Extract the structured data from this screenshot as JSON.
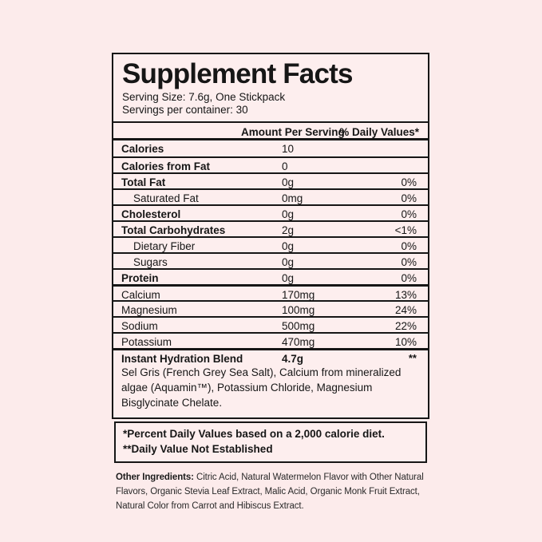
{
  "page": {
    "background_color": "#fcebeb",
    "panel_background_color": "#fdeeee",
    "border_color": "#161616"
  },
  "label": {
    "title": "Supplement Facts",
    "serving_size": "Serving Size: 7.6g, One Stickpack",
    "servings_per_container": "Servings per container: 30",
    "columns": {
      "amount": "Amount Per Serving",
      "dv": "% Daily Values*"
    },
    "rows": [
      {
        "label": "Calories",
        "amount": "10",
        "dv": "",
        "bold": true
      },
      {
        "label": "Calories from Fat",
        "amount": "0",
        "dv": "",
        "bold": true
      },
      {
        "label": "Total Fat",
        "amount": "0g",
        "dv": "0%",
        "bold": true
      },
      {
        "label": "Saturated Fat",
        "amount": "0mg",
        "dv": "0%",
        "indent": true
      },
      {
        "label": "Cholesterol",
        "amount": "0g",
        "dv": "0%",
        "bold": true
      },
      {
        "label": "Total Carbohydrates",
        "amount": "2g",
        "dv": "<1%",
        "bold": true
      },
      {
        "label": "Dietary Fiber",
        "amount": "0g",
        "dv": "0%",
        "indent": true
      },
      {
        "label": "Sugars",
        "amount": "0g",
        "dv": "0%",
        "indent": true
      },
      {
        "label": "Protein",
        "amount": "0g",
        "dv": "0%",
        "bold": true
      },
      {
        "label": "Calcium",
        "amount": "170mg",
        "dv": "13%",
        "section": true
      },
      {
        "label": "Magnesium",
        "amount": "100mg",
        "dv": "24%"
      },
      {
        "label": "Sodium",
        "amount": "500mg",
        "dv": "22%"
      },
      {
        "label": "Potassium",
        "amount": "470mg",
        "dv": "10%"
      },
      {
        "label": "Instant Hydration Blend",
        "amount": "4.7g",
        "dv": "**",
        "bold": true,
        "section": true,
        "blend": true
      }
    ],
    "blend_description": "Sel Gris (French Grey Sea Salt), Calcium from mineralized algae (Aquamin™), Potassium Chloride, Magnesium Bisglycinate Chelate.",
    "footnotes": [
      "*Percent Daily Values based on a 2,000 calorie diet.",
      "**Daily Value Not Established"
    ]
  },
  "other_ingredients": {
    "label": "Other Ingredients:",
    "text": " Citric Acid, Natural Watermelon Flavor with Other Natural Flavors, Organic Stevia Leaf Extract, Malic Acid, Organic Monk Fruit Extract, Natural Color from Carrot and Hibiscus Extract."
  }
}
